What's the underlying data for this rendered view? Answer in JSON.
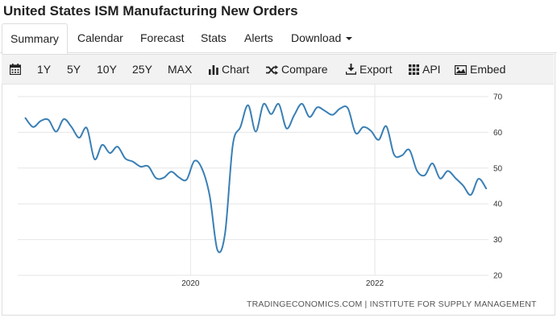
{
  "title": "United States ISM Manufacturing New Orders",
  "tabs": {
    "summary": "Summary",
    "calendar": "Calendar",
    "forecast": "Forecast",
    "stats": "Stats",
    "alerts": "Alerts",
    "download": "Download"
  },
  "toolbar": {
    "range_1y": "1Y",
    "range_5y": "5Y",
    "range_10y": "10Y",
    "range_25y": "25Y",
    "range_max": "MAX",
    "chart": "Chart",
    "compare": "Compare",
    "export": "Export",
    "api": "API",
    "embed": "Embed"
  },
  "icons": {
    "calendar": "calendar-icon",
    "chart": "bar-chart-icon",
    "compare": "shuffle-icon",
    "export": "download-icon",
    "api": "grid-icon",
    "embed": "image-icon"
  },
  "source": "TRADINGECONOMICS.COM | INSTITUTE FOR SUPPLY MANAGEMENT",
  "colors": {
    "line": "#3a7fb5",
    "toolbar_bg": "#f2f2f2",
    "grid": "#e6e6e6"
  },
  "chart_data": {
    "type": "line",
    "title": "United States ISM Manufacturing New Orders",
    "y_axis_position": "right",
    "ylim": [
      20,
      70
    ],
    "yticks": [
      20,
      30,
      40,
      50,
      60,
      70
    ],
    "xlim": [
      "2018-02",
      "2023-03"
    ],
    "xticks": [
      "2020",
      "2022"
    ],
    "grid": true,
    "legend": "none",
    "series": [
      {
        "x": [
          "2018-03",
          "2018-04",
          "2018-05",
          "2018-06",
          "2018-07",
          "2018-08",
          "2018-09",
          "2018-10",
          "2018-11",
          "2018-12",
          "2019-01",
          "2019-02",
          "2019-03",
          "2019-04",
          "2019-05",
          "2019-06",
          "2019-07",
          "2019-08",
          "2019-09",
          "2019-10",
          "2019-11",
          "2019-12",
          "2020-01",
          "2020-02",
          "2020-03",
          "2020-04",
          "2020-05",
          "2020-06",
          "2020-07",
          "2020-08",
          "2020-09",
          "2020-10",
          "2020-11",
          "2020-12",
          "2021-01",
          "2021-02",
          "2021-03",
          "2021-04",
          "2021-05",
          "2021-06",
          "2021-07",
          "2021-08",
          "2021-09",
          "2021-10",
          "2021-11",
          "2021-12",
          "2022-01",
          "2022-02",
          "2022-03",
          "2022-04",
          "2022-05",
          "2022-06",
          "2022-07",
          "2022-08",
          "2022-09",
          "2022-10",
          "2022-11",
          "2022-12",
          "2023-01",
          "2023-02",
          "2023-03"
        ],
        "values": [
          64.0,
          61.5,
          63.2,
          63.5,
          60.2,
          63.7,
          61.5,
          58.5,
          61.2,
          52.5,
          56.5,
          54.2,
          56.0,
          52.7,
          51.8,
          50.4,
          50.5,
          47.2,
          47.3,
          49.0,
          47.4,
          46.8,
          52.0,
          49.8,
          42.2,
          27.1,
          31.8,
          56.4,
          61.5,
          67.6,
          60.2,
          67.9,
          65.1,
          67.9,
          61.1,
          64.8,
          68.0,
          64.3,
          67.0,
          66.0,
          64.9,
          66.7,
          66.7,
          59.8,
          61.5,
          60.4,
          57.9,
          61.7,
          53.8,
          53.5,
          55.1,
          49.2,
          48.0,
          51.3,
          47.1,
          49.2,
          47.2,
          45.1,
          42.5,
          47.0,
          44.3
        ]
      }
    ]
  }
}
